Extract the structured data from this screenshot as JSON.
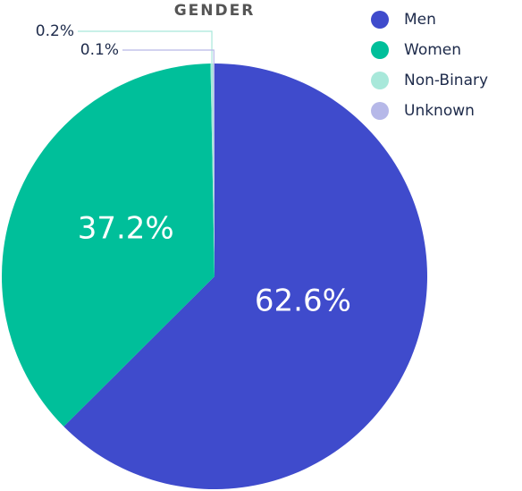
{
  "chart_data": {
    "type": "pie",
    "title": "GENDER",
    "categories": [
      "Men",
      "Women",
      "Non-Binary",
      "Unknown"
    ],
    "values": [
      62.6,
      37.2,
      0.2,
      0.1
    ],
    "value_labels": [
      "62.6%",
      "37.2%",
      "0.2%",
      "0.1%"
    ],
    "colors": [
      "#3f4bcc",
      "#00bf9a",
      "#a8e8da",
      "#b6b8e8"
    ],
    "legend": "top-right"
  }
}
